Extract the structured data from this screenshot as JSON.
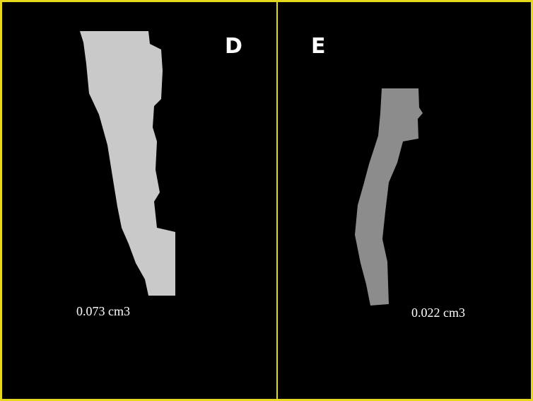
{
  "panels": [
    {
      "label": "D",
      "volume": "0.073 cm3"
    },
    {
      "label": "E",
      "volume": "0.022 cm3"
    }
  ]
}
